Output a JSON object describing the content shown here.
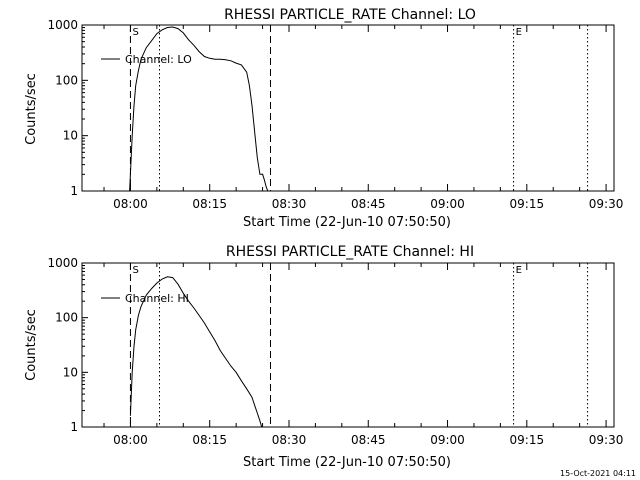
{
  "footer_timestamp": "15-Oct-2021 04:11",
  "chart_data": [
    {
      "type": "line",
      "title": "RHESSI PARTICLE_RATE Channel: LO",
      "xlabel": "Start Time (22-Jun-10 07:50:50)",
      "ylabel": "Counts/sec",
      "yscale": "log",
      "xlim": [
        "07:50:50",
        "09:31:30"
      ],
      "ylim": [
        1,
        1000
      ],
      "x_ticks": [
        "08:00",
        "08:15",
        "08:30",
        "08:45",
        "09:00",
        "09:15",
        "09:30"
      ],
      "y_ticks": [
        "1",
        "10",
        "100",
        "1000"
      ],
      "legend": "top-left",
      "markers": [
        {
          "label": "S",
          "x": "08:00",
          "style": "dashed"
        },
        {
          "label": "",
          "x": "08:26:30",
          "style": "dashed"
        },
        {
          "label": "",
          "x": "08:05:30",
          "style": "dotted"
        },
        {
          "label": "E",
          "x": "09:12:30",
          "style": "dotted"
        },
        {
          "label": "",
          "x": "09:26:30",
          "style": "dotted"
        }
      ],
      "series": [
        {
          "name": "Channel: LO",
          "x": [
            "07:59:50",
            "08:00:00",
            "08:00:20",
            "08:00:40",
            "08:01:00",
            "08:01:30",
            "08:02:00",
            "08:03:00",
            "08:04:00",
            "08:05:00",
            "08:06:00",
            "08:07:00",
            "08:08:00",
            "08:09:00",
            "08:10:00",
            "08:11:00",
            "08:12:00",
            "08:13:00",
            "08:14:00",
            "08:15:00",
            "08:16:00",
            "08:17:00",
            "08:18:00",
            "08:19:00",
            "08:20:00",
            "08:21:00",
            "08:22:00",
            "08:22:30",
            "08:23:00",
            "08:23:30",
            "08:24:00",
            "08:24:30",
            "08:25:00",
            "08:25:20",
            "08:25:40",
            "08:26:00"
          ],
          "values": [
            1,
            2,
            10,
            35,
            80,
            150,
            240,
            390,
            520,
            700,
            820,
            900,
            920,
            860,
            720,
            540,
            430,
            330,
            270,
            250,
            240,
            240,
            235,
            225,
            205,
            190,
            140,
            80,
            35,
            12,
            4,
            2,
            2,
            1.6,
            1.2,
            1
          ]
        }
      ]
    },
    {
      "type": "line",
      "title": "RHESSI PARTICLE_RATE Channel: HI",
      "xlabel": "Start Time (22-Jun-10 07:50:50)",
      "ylabel": "Counts/sec",
      "yscale": "log",
      "xlim": [
        "07:50:50",
        "09:31:30"
      ],
      "ylim": [
        1,
        1000
      ],
      "x_ticks": [
        "08:00",
        "08:15",
        "08:30",
        "08:45",
        "09:00",
        "09:15",
        "09:30"
      ],
      "y_ticks": [
        "1",
        "10",
        "100",
        "1000"
      ],
      "legend": "top-left",
      "markers": [
        {
          "label": "S",
          "x": "08:00",
          "style": "dashed"
        },
        {
          "label": "",
          "x": "08:26:30",
          "style": "dashed"
        },
        {
          "label": "",
          "x": "08:05:30",
          "style": "dotted"
        },
        {
          "label": "E",
          "x": "09:12:30",
          "style": "dotted"
        },
        {
          "label": "",
          "x": "09:26:30",
          "style": "dotted"
        }
      ],
      "series": [
        {
          "name": "Channel: HI",
          "x": [
            "08:00:00",
            "08:00:20",
            "08:00:40",
            "08:01:00",
            "08:01:30",
            "08:02:00",
            "08:03:00",
            "08:04:00",
            "08:05:00",
            "08:06:00",
            "08:07:00",
            "08:08:00",
            "08:09:00",
            "08:10:00",
            "08:11:00",
            "08:12:00",
            "08:13:00",
            "08:14:00",
            "08:15:00",
            "08:16:00",
            "08:17:00",
            "08:18:00",
            "08:19:00",
            "08:20:00",
            "08:21:00",
            "08:22:00",
            "08:23:00",
            "08:23:30",
            "08:24:00",
            "08:24:30",
            "08:24:50"
          ],
          "values": [
            1.6,
            10,
            30,
            60,
            110,
            160,
            260,
            340,
            430,
            510,
            560,
            540,
            410,
            280,
            200,
            150,
            110,
            80,
            55,
            38,
            25,
            18,
            13,
            10,
            7,
            5,
            3.5,
            2.5,
            1.8,
            1.3,
            1
          ]
        }
      ]
    }
  ]
}
